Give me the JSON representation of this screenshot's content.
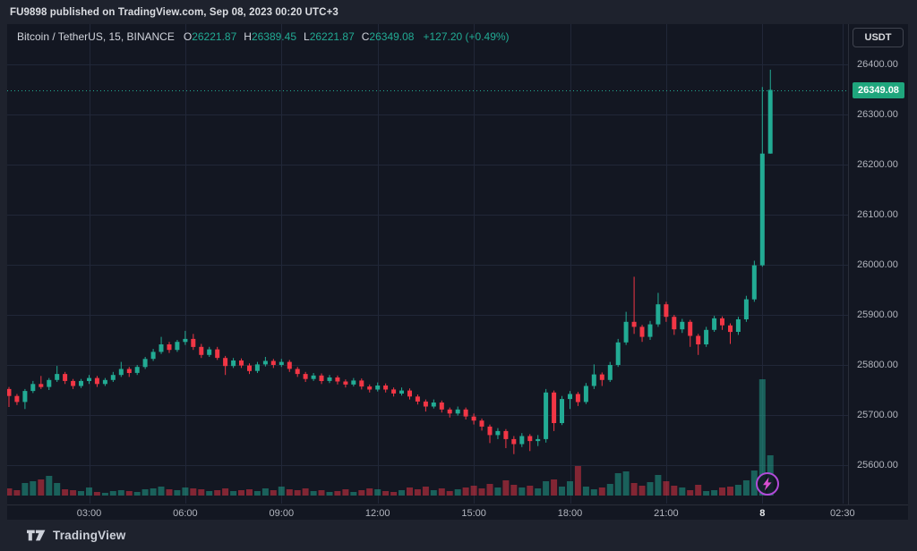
{
  "attribution": "FU9898 published on TradingView.com, Sep 08, 2023 00:20 UTC+3",
  "legend": {
    "symbol": "Bitcoin / TetherUS, 15, BINANCE",
    "ohlc": {
      "o_label": "O",
      "o": "26221.87",
      "h_label": "H",
      "h": "26389.45",
      "l_label": "L",
      "l": "26221.87",
      "c_label": "C",
      "c": "26349.08"
    },
    "change": "+127.20 (+0.49%)"
  },
  "price_axis": {
    "currency_button": "USDT",
    "current_price": "26349.08",
    "labels": [
      {
        "text": "26400.00",
        "price": 26400
      },
      {
        "text": "26300.00",
        "price": 26300
      },
      {
        "text": "26200.00",
        "price": 26200
      },
      {
        "text": "26100.00",
        "price": 26100
      },
      {
        "text": "26000.00",
        "price": 26000
      },
      {
        "text": "25900.00",
        "price": 25900
      },
      {
        "text": "25800.00",
        "price": 25800
      },
      {
        "text": "25700.00",
        "price": 25700
      },
      {
        "text": "25600.00",
        "price": 25600
      }
    ]
  },
  "time_axis": {
    "labels": [
      {
        "text": "03:00",
        "index": 10
      },
      {
        "text": "06:00",
        "index": 22
      },
      {
        "text": "09:00",
        "index": 34
      },
      {
        "text": "12:00",
        "index": 46
      },
      {
        "text": "15:00",
        "index": 58
      },
      {
        "text": "18:00",
        "index": 70
      },
      {
        "text": "21:00",
        "index": 82
      },
      {
        "text": "8",
        "index": 94,
        "bold": true
      },
      {
        "text": "02:30",
        "index": 104
      }
    ]
  },
  "footer": {
    "brand": "TradingView"
  },
  "colors": {
    "up": "#22ab94",
    "down": "#f23645",
    "badge": "#1fa67d",
    "bg_outer": "#1e222d",
    "bg_pane": "#131722",
    "grid": "#212738",
    "axis_border": "#2a2e39",
    "axis_text": "#b2b5be",
    "accent_purple": "#b14bd8",
    "bolt_pink": "#d84fd0"
  },
  "chart_data": {
    "type": "candlestick",
    "symbol": "Bitcoin / TetherUS",
    "interval_minutes": "15",
    "exchange": "BINANCE",
    "date": "Sep 07-08, 2023",
    "price_line_value": 26349.08,
    "last_candle": {
      "open": 26221.87,
      "high": 26389.45,
      "low": 26221.87,
      "close": 26349.08,
      "change": "+127.20",
      "change_pct": "+0.49%"
    },
    "ylim": [
      25560,
      26420
    ],
    "grid": true,
    "volume_note": "volume pane unlabeled; values are relative units",
    "columns": [
      "time",
      "open",
      "high",
      "low",
      "close",
      "volume_rel"
    ],
    "candles": [
      [
        "00:30",
        25752,
        25756,
        25716,
        25738,
        8
      ],
      [
        "00:45",
        25738,
        25742,
        25720,
        25726,
        6
      ],
      [
        "01:00",
        25726,
        25752,
        25712,
        25748,
        14
      ],
      [
        "01:15",
        25748,
        25768,
        25744,
        25762,
        16
      ],
      [
        "01:30",
        25762,
        25778,
        25752,
        25756,
        18
      ],
      [
        "01:45",
        25756,
        25774,
        25750,
        25770,
        22
      ],
      [
        "02:00",
        25770,
        25798,
        25766,
        25782,
        14
      ],
      [
        "02:15",
        25782,
        25786,
        25762,
        25768,
        7
      ],
      [
        "02:30",
        25768,
        25772,
        25752,
        25758,
        6
      ],
      [
        "02:45",
        25758,
        25772,
        25754,
        25768,
        5
      ],
      [
        "03:00",
        25768,
        25780,
        25762,
        25774,
        9
      ],
      [
        "03:15",
        25774,
        25778,
        25756,
        25762,
        4
      ],
      [
        "03:30",
        25762,
        25774,
        25758,
        25770,
        3
      ],
      [
        "03:45",
        25770,
        25786,
        25766,
        25780,
        5
      ],
      [
        "04:00",
        25780,
        25806,
        25776,
        25792,
        6
      ],
      [
        "04:15",
        25792,
        25796,
        25776,
        25784,
        5
      ],
      [
        "04:30",
        25784,
        25800,
        25780,
        25796,
        4
      ],
      [
        "04:45",
        25796,
        25816,
        25792,
        25812,
        7
      ],
      [
        "05:00",
        25812,
        25832,
        25808,
        25826,
        8
      ],
      [
        "05:15",
        25826,
        25856,
        25822,
        25841,
        10
      ],
      [
        "05:30",
        25841,
        25846,
        25824,
        25830,
        7
      ],
      [
        "05:45",
        25830,
        25850,
        25826,
        25846,
        6
      ],
      [
        "06:00",
        25846,
        25868,
        25840,
        25852,
        9
      ],
      [
        "06:15",
        25852,
        25862,
        25830,
        25836,
        8
      ],
      [
        "06:30",
        25836,
        25842,
        25814,
        25820,
        7
      ],
      [
        "06:45",
        25820,
        25836,
        25816,
        25831,
        5
      ],
      [
        "07:00",
        25831,
        25836,
        25810,
        25814,
        6
      ],
      [
        "07:15",
        25814,
        25818,
        25780,
        25798,
        8
      ],
      [
        "07:30",
        25798,
        25814,
        25794,
        25809,
        5
      ],
      [
        "07:45",
        25809,
        25813,
        25794,
        25799,
        6
      ],
      [
        "08:00",
        25799,
        25803,
        25782,
        25788,
        7
      ],
      [
        "08:15",
        25788,
        25806,
        25784,
        25801,
        5
      ],
      [
        "08:30",
        25801,
        25816,
        25797,
        25808,
        8
      ],
      [
        "08:45",
        25808,
        25812,
        25794,
        25800,
        6
      ],
      [
        "09:00",
        25800,
        25812,
        25796,
        25806,
        10
      ],
      [
        "09:15",
        25806,
        25810,
        25786,
        25792,
        7
      ],
      [
        "09:30",
        25792,
        25796,
        25776,
        25782,
        6
      ],
      [
        "09:45",
        25782,
        25786,
        25766,
        25772,
        8
      ],
      [
        "10:00",
        25772,
        25784,
        25768,
        25779,
        5
      ],
      [
        "10:15",
        25779,
        25783,
        25762,
        25768,
        6
      ],
      [
        "10:30",
        25768,
        25780,
        25764,
        25775,
        4
      ],
      [
        "10:45",
        25775,
        25779,
        25761,
        25767,
        5
      ],
      [
        "11:00",
        25767,
        25771,
        25755,
        25761,
        7
      ],
      [
        "11:15",
        25761,
        25774,
        25757,
        25769,
        4
      ],
      [
        "11:30",
        25769,
        25773,
        25751,
        25757,
        6
      ],
      [
        "11:45",
        25757,
        25761,
        25745,
        25751,
        8
      ],
      [
        "12:00",
        25751,
        25765,
        25747,
        25759,
        7
      ],
      [
        "12:15",
        25759,
        25763,
        25745,
        25751,
        5
      ],
      [
        "12:30",
        25751,
        25755,
        25737,
        25743,
        4
      ],
      [
        "12:45",
        25743,
        25755,
        25739,
        25749,
        6
      ],
      [
        "13:00",
        25749,
        25753,
        25731,
        25737,
        9
      ],
      [
        "13:15",
        25737,
        25741,
        25721,
        25727,
        7
      ],
      [
        "13:30",
        25727,
        25731,
        25707,
        25717,
        10
      ],
      [
        "13:45",
        25717,
        25731,
        25713,
        25725,
        6
      ],
      [
        "14:00",
        25725,
        25729,
        25705,
        25711,
        8
      ],
      [
        "14:15",
        25711,
        25715,
        25695,
        25703,
        5
      ],
      [
        "14:30",
        25703,
        25717,
        25699,
        25711,
        7
      ],
      [
        "14:45",
        25711,
        25715,
        25691,
        25697,
        9
      ],
      [
        "15:00",
        25697,
        25703,
        25681,
        25689,
        11
      ],
      [
        "15:15",
        25689,
        25693,
        25669,
        25677,
        8
      ],
      [
        "15:30",
        25677,
        25681,
        25644,
        25660,
        13
      ],
      [
        "15:45",
        25660,
        25674,
        25652,
        25668,
        9
      ],
      [
        "16:00",
        25668,
        25672,
        25634,
        25652,
        17
      ],
      [
        "16:15",
        25652,
        25658,
        25622,
        25642,
        12
      ],
      [
        "16:30",
        25642,
        25664,
        25636,
        25658,
        9
      ],
      [
        "16:45",
        25658,
        25662,
        25628,
        25648,
        11
      ],
      [
        "17:00",
        25648,
        25660,
        25638,
        25652,
        8
      ],
      [
        "17:15",
        25652,
        25752,
        25645,
        25745,
        16
      ],
      [
        "17:30",
        25745,
        25749,
        25668,
        25684,
        18
      ],
      [
        "17:45",
        25684,
        25738,
        25680,
        25732,
        10
      ],
      [
        "18:00",
        25732,
        25748,
        25712,
        25742,
        16
      ],
      [
        "18:15",
        25742,
        25746,
        25718,
        25726,
        33
      ],
      [
        "18:30",
        25726,
        25764,
        25722,
        25758,
        10
      ],
      [
        "18:45",
        25758,
        25801,
        25752,
        25781,
        7
      ],
      [
        "19:00",
        25781,
        25785,
        25758,
        25770,
        9
      ],
      [
        "19:15",
        25770,
        25806,
        25766,
        25800,
        13
      ],
      [
        "19:30",
        25800,
        25852,
        25796,
        25845,
        25
      ],
      [
        "19:45",
        25845,
        25906,
        25840,
        25886,
        27
      ],
      [
        "20:00",
        25886,
        25976,
        25862,
        25876,
        14
      ],
      [
        "20:15",
        25876,
        25880,
        25846,
        25856,
        11
      ],
      [
        "20:30",
        25856,
        25888,
        25850,
        25881,
        15
      ],
      [
        "20:45",
        25881,
        25944,
        25876,
        25921,
        23
      ],
      [
        "21:00",
        25921,
        25926,
        25886,
        25896,
        16
      ],
      [
        "21:15",
        25896,
        25900,
        25860,
        25871,
        11
      ],
      [
        "21:30",
        25871,
        25892,
        25864,
        25886,
        9
      ],
      [
        "21:45",
        25886,
        25890,
        25836,
        25858,
        6
      ],
      [
        "22:00",
        25858,
        25862,
        25820,
        25841,
        12
      ],
      [
        "22:15",
        25841,
        25876,
        25836,
        25870,
        5
      ],
      [
        "22:30",
        25870,
        25898,
        25866,
        25893,
        6
      ],
      [
        "22:45",
        25893,
        25897,
        25870,
        25879,
        9
      ],
      [
        "23:00",
        25879,
        25883,
        25842,
        25866,
        10
      ],
      [
        "23:15",
        25866,
        25896,
        25860,
        25891,
        12
      ],
      [
        "23:30",
        25891,
        25938,
        25886,
        25931,
        17
      ],
      [
        "23:45",
        25931,
        26008,
        25926,
        25999,
        28
      ],
      [
        "00:00",
        25999,
        26355,
        25996,
        26222,
        130
      ],
      [
        "00:15",
        26221.87,
        26389.45,
        26221.87,
        26349.08,
        45
      ]
    ]
  }
}
